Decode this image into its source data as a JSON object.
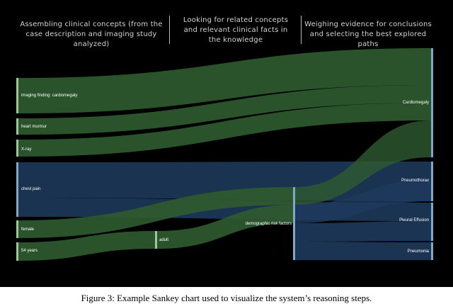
{
  "headers": [
    "Assembling clinical concepts (from the case description and imaging study analyzed)",
    "Looking for related concepts and relevant clinical facts in the knowledge",
    "Weighing evidence for conclusions and selecting the best explored paths"
  ],
  "caption": "Figure 3: Example Sankey chart used to visualize the system’s reasoning steps.",
  "colors": {
    "background": "#000000",
    "green": "#2e5a2f",
    "blue": "#1e3a5c",
    "node_green": "#9fc59a",
    "node_blue": "#7fa8c8"
  },
  "chart_data": {
    "type": "sankey",
    "stages": [
      "Assembling clinical concepts",
      "Looking for related concepts",
      "Weighing evidence"
    ],
    "nodes": [
      {
        "id": "imaging",
        "label": "imaging finding: cardiomegaly",
        "stage": 0,
        "value": 3
      },
      {
        "id": "murmur",
        "label": "heart murmur",
        "stage": 0,
        "value": 1
      },
      {
        "id": "xray",
        "label": "X-ray",
        "stage": 0,
        "value": 1
      },
      {
        "id": "chestpain",
        "label": "chest pain",
        "stage": 0,
        "value": 3
      },
      {
        "id": "female",
        "label": "female",
        "stage": 0,
        "value": 1
      },
      {
        "id": "age",
        "label": "54 years",
        "stage": 0,
        "value": 1
      },
      {
        "id": "adult",
        "label": "adult",
        "stage": 1,
        "value": 1
      },
      {
        "id": "demo",
        "label": "demographic risk factors",
        "stage": 1,
        "value": 4
      },
      {
        "id": "cardio",
        "label": "Cardiomegaly",
        "stage": 2,
        "value": 6
      },
      {
        "id": "pneumothorax",
        "label": "Pneumothorax",
        "stage": 2,
        "value": 2
      },
      {
        "id": "effusion",
        "label": "Pleural Effusion",
        "stage": 2,
        "value": 2
      },
      {
        "id": "pneumonia",
        "label": "Pneumonia",
        "stage": 2,
        "value": 1
      }
    ],
    "links": [
      {
        "source": "imaging",
        "target": "cardio",
        "value": 3
      },
      {
        "source": "murmur",
        "target": "cardio",
        "value": 1
      },
      {
        "source": "xray",
        "target": "cardio",
        "value": 1
      },
      {
        "source": "chestpain",
        "target": "pneumothorax",
        "value": 1
      },
      {
        "source": "chestpain",
        "target": "pneumothorax",
        "value": 0.5
      },
      {
        "source": "chestpain",
        "target": "effusion",
        "value": 1
      },
      {
        "source": "female",
        "target": "demo",
        "value": 1
      },
      {
        "source": "age",
        "target": "adult",
        "value": 1
      },
      {
        "source": "adult",
        "target": "demo",
        "value": 1
      },
      {
        "source": "demo",
        "target": "cardio",
        "value": 1
      },
      {
        "source": "demo",
        "target": "pneumothorax",
        "value": 1
      },
      {
        "source": "demo",
        "target": "effusion",
        "value": 1
      },
      {
        "source": "demo",
        "target": "pneumonia",
        "value": 1
      }
    ]
  }
}
